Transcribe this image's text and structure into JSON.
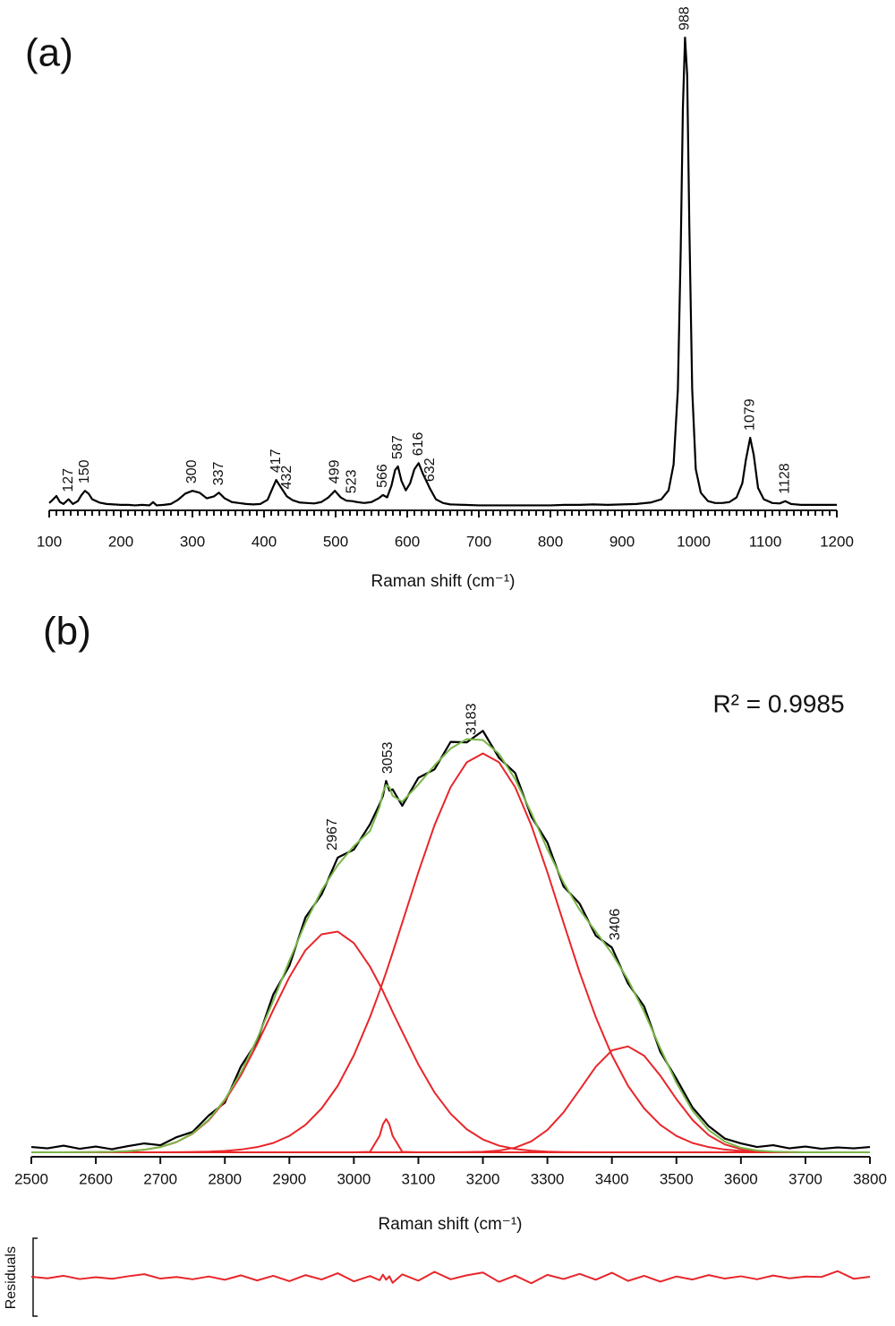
{
  "chart_data": [
    {
      "type": "line",
      "panel": "(a)",
      "xlabel": "Raman shift (cm⁻¹)",
      "xlim": [
        100,
        1200
      ],
      "xticks": [
        100,
        200,
        300,
        400,
        500,
        600,
        700,
        800,
        900,
        1000,
        1100,
        1200
      ],
      "ylim": [
        0,
        100
      ],
      "x": [
        100,
        105,
        110,
        115,
        120,
        127,
        133,
        140,
        145,
        150,
        155,
        160,
        170,
        180,
        190,
        200,
        210,
        220,
        230,
        240,
        245,
        250,
        260,
        270,
        280,
        290,
        300,
        310,
        320,
        330,
        337,
        345,
        355,
        365,
        375,
        385,
        395,
        405,
        412,
        417,
        422,
        432,
        440,
        450,
        460,
        470,
        480,
        490,
        499,
        507,
        515,
        523,
        530,
        540,
        550,
        560,
        566,
        572,
        578,
        583,
        587,
        592,
        598,
        604,
        610,
        616,
        622,
        632,
        640,
        650,
        660,
        680,
        700,
        720,
        740,
        760,
        780,
        800,
        820,
        840,
        860,
        880,
        900,
        920,
        940,
        955,
        965,
        972,
        978,
        982,
        985,
        988,
        991,
        994,
        998,
        1003,
        1010,
        1020,
        1030,
        1040,
        1050,
        1060,
        1068,
        1073,
        1079,
        1084,
        1090,
        1098,
        1110,
        1120,
        1128,
        1136,
        1150,
        1170,
        1200
      ],
      "series": [
        {
          "color": "#000000",
          "values": [
            0.8,
            1.5,
            2.3,
            1.0,
            0.6,
            1.6,
            0.6,
            1.2,
            2.5,
            3.4,
            2.8,
            1.6,
            0.9,
            0.6,
            0.5,
            0.4,
            0.4,
            0.3,
            0.4,
            0.3,
            1.0,
            0.3,
            0.4,
            0.6,
            1.5,
            2.8,
            3.4,
            3.0,
            1.8,
            2.2,
            3.0,
            1.8,
            1.0,
            0.8,
            0.6,
            0.5,
            0.6,
            1.5,
            4.0,
            5.7,
            4.5,
            2.2,
            1.4,
            0.9,
            0.8,
            0.7,
            1.0,
            2.0,
            3.4,
            2.0,
            1.3,
            1.2,
            1.0,
            0.8,
            1.0,
            1.8,
            2.5,
            2.0,
            4.5,
            7.8,
            8.6,
            5.5,
            3.5,
            5.0,
            8.0,
            9.3,
            7.0,
            3.8,
            1.6,
            0.8,
            0.5,
            0.4,
            0.3,
            0.3,
            0.3,
            0.3,
            0.3,
            0.3,
            0.4,
            0.4,
            0.5,
            0.4,
            0.5,
            0.6,
            0.9,
            1.6,
            3.5,
            9,
            25,
            55,
            85,
            100,
            92,
            60,
            25,
            8,
            3,
            1.2,
            0.8,
            0.8,
            1.0,
            2.0,
            5,
            10,
            14.7,
            11,
            4,
            1.6,
            0.8,
            0.7,
            1.2,
            0.6,
            0.4,
            0.4,
            0.4
          ]
        }
      ],
      "peak_labels": [
        127,
        150,
        300,
        337,
        417,
        432,
        499,
        523,
        566,
        587,
        616,
        632,
        988,
        1079,
        1128
      ]
    },
    {
      "type": "line",
      "panel": "(b)",
      "xlabel": "Raman shift (cm⁻¹)",
      "annotation": "R² = 0.9985",
      "xlim": [
        2500,
        3800
      ],
      "xticks": [
        2500,
        2600,
        2700,
        2800,
        2900,
        3000,
        3100,
        3200,
        3300,
        3400,
        3500,
        3600,
        3700,
        3800
      ],
      "ylim": [
        0,
        100
      ],
      "x": [
        2500,
        2525,
        2550,
        2575,
        2600,
        2625,
        2650,
        2675,
        2700,
        2725,
        2750,
        2775,
        2800,
        2825,
        2850,
        2875,
        2900,
        2925,
        2950,
        2975,
        3000,
        3025,
        3040,
        3045,
        3050,
        3055,
        3060,
        3075,
        3100,
        3125,
        3150,
        3175,
        3200,
        3225,
        3250,
        3275,
        3300,
        3325,
        3350,
        3375,
        3400,
        3425,
        3450,
        3475,
        3500,
        3525,
        3550,
        3575,
        3600,
        3625,
        3650,
        3675,
        3700,
        3725,
        3750,
        3775,
        3800
      ],
      "series": [
        {
          "color": "#000000",
          "values": [
            1.2,
            0.9,
            1.5,
            0.8,
            1.3,
            0.7,
            1.4,
            2.0,
            1.6,
            3.4,
            4.6,
            8.3,
            11.2,
            19.4,
            25.0,
            35.6,
            42.1,
            53.0,
            58.2,
            66.5,
            68.3,
            74.0,
            78.6,
            80.4,
            83.8,
            81.6,
            81.9,
            78.2,
            84.5,
            86.4,
            92.6,
            92.5,
            95.1,
            89.0,
            85.6,
            75.8,
            69.9,
            60.0,
            56.1,
            48.9,
            46.2,
            38.1,
            32.9,
            22.7,
            16.6,
            10.1,
            5.9,
            3.1,
            2.0,
            1.2,
            1.6,
            0.9,
            1.3,
            0.8,
            1.1,
            0.9,
            1.2
          ]
        },
        {
          "color": "#e8262a",
          "values": [
            0,
            0,
            0,
            0.02,
            0.04,
            0.11,
            0.26,
            0.57,
            1.19,
            2.3,
            4.2,
            7.2,
            11.6,
            17.4,
            24.4,
            32.1,
            39.5,
            45.6,
            49.2,
            49.8,
            47.2,
            41.9,
            37.8,
            36.4,
            34.8,
            33.3,
            31.7,
            27.2,
            19.8,
            13.5,
            8.7,
            5.2,
            2.9,
            1.5,
            0.75,
            0.35,
            0.15,
            0.06,
            0.02,
            0.01,
            0,
            0,
            0,
            0,
            0,
            0,
            0,
            0,
            0,
            0,
            0,
            0,
            0,
            0,
            0,
            0,
            0
          ]
        },
        {
          "color": "#e8262a",
          "values": [
            0,
            0,
            0,
            0,
            0,
            0,
            0,
            0,
            0,
            0,
            0,
            0,
            0,
            0,
            0,
            0,
            0,
            0,
            0,
            0,
            0,
            0.1,
            3.75,
            6.3,
            7.5,
            6.3,
            3.75,
            0.1,
            0,
            0,
            0,
            0,
            0,
            0,
            0,
            0,
            0,
            0,
            0,
            0,
            0,
            0,
            0,
            0,
            0,
            0,
            0,
            0,
            0,
            0,
            0,
            0,
            0,
            0,
            0,
            0,
            0
          ]
        },
        {
          "color": "#e8262a",
          "values": [
            0,
            0,
            0,
            0,
            0,
            0,
            0,
            0,
            0,
            0.03,
            0.07,
            0.15,
            0.31,
            0.62,
            1.18,
            2.1,
            3.7,
            6.2,
            9.9,
            15.0,
            21.9,
            30.5,
            36.4,
            38.5,
            40.6,
            42.8,
            45.0,
            51.8,
            63.2,
            73.8,
            82.4,
            88.0,
            90.0,
            88.0,
            82.4,
            73.8,
            63.2,
            51.8,
            40.6,
            30.5,
            21.9,
            15.0,
            9.9,
            6.2,
            3.7,
            2.1,
            1.18,
            0.62,
            0.31,
            0.15,
            0.07,
            0.03,
            0,
            0,
            0,
            0,
            0
          ]
        },
        {
          "color": "#e8262a",
          "values": [
            0,
            0,
            0,
            0,
            0,
            0,
            0,
            0,
            0,
            0,
            0,
            0,
            0,
            0,
            0,
            0,
            0,
            0,
            0,
            0,
            0,
            0,
            0,
            0,
            0,
            0,
            0,
            0,
            0,
            0,
            0.01,
            0.04,
            0.13,
            0.39,
            1.05,
            2.46,
            5.04,
            9.0,
            14.1,
            19.3,
            23.0,
            23.9,
            21.8,
            17.3,
            12.0,
            7.3,
            3.85,
            1.78,
            0.72,
            0.25,
            0.08,
            0.02,
            0,
            0,
            0,
            0,
            0
          ]
        },
        {
          "color": "#7ab648",
          "values": [
            0,
            0,
            0,
            0.02,
            0.04,
            0.11,
            0.26,
            0.57,
            1.19,
            2.33,
            4.27,
            7.35,
            11.91,
            18.02,
            25.58,
            34.2,
            43.2,
            51.8,
            59.1,
            64.8,
            69.1,
            72.5,
            77.95,
            81.2,
            82.9,
            82.4,
            80.45,
            79.1,
            83.0,
            87.3,
            91.11,
            93.24,
            93.03,
            89.89,
            84.2,
            76.61,
            68.39,
            60.86,
            54.72,
            49.81,
            44.9,
            38.9,
            31.7,
            23.5,
            15.7,
            9.4,
            5.03,
            2.4,
            1.03,
            0.4,
            0.15,
            0.05,
            0,
            0,
            0,
            0,
            0
          ]
        }
      ],
      "peak_labels": [
        2967,
        3053,
        3183,
        3406
      ]
    },
    {
      "type": "line",
      "ylabel": "Residuals",
      "xlim": [
        2500,
        3800
      ],
      "ylim": [
        -15,
        15
      ],
      "x": [
        2500,
        2525,
        2550,
        2575,
        2600,
        2625,
        2650,
        2675,
        2700,
        2725,
        2750,
        2775,
        2800,
        2825,
        2850,
        2875,
        2900,
        2925,
        2950,
        2975,
        3000,
        3025,
        3040,
        3045,
        3050,
        3055,
        3060,
        3075,
        3100,
        3125,
        3150,
        3175,
        3200,
        3225,
        3250,
        3275,
        3300,
        3325,
        3350,
        3375,
        3400,
        3425,
        3450,
        3475,
        3500,
        3525,
        3550,
        3575,
        3600,
        3625,
        3650,
        3675,
        3700,
        3725,
        3750,
        3775,
        3800
      ],
      "series": [
        {
          "color": "#e8262a",
          "values": [
            0.4,
            -0.3,
            0.8,
            -0.6,
            0.2,
            -0.5,
            0.6,
            1.5,
            -0.4,
            0.3,
            -0.7,
            0.5,
            -0.9,
            1.0,
            -1.2,
            0.8,
            -1.5,
            1.1,
            -0.8,
            1.9,
            -1.6,
            0.7,
            -1.1,
            1.3,
            -0.9,
            0.6,
            -2.2,
            1.4,
            -1.3,
            2.5,
            -0.7,
            1.0,
            2.2,
            -1.8,
            0.9,
            -2.4,
            1.2,
            -0.6,
            1.6,
            -0.9,
            2.1,
            -1.4,
            0.8,
            -1.7,
            0.5,
            -0.8,
            1.1,
            -0.4,
            0.6,
            -0.7,
            0.9,
            -0.3,
            0.5,
            0.3,
            2.8,
            -0.5,
            0.4
          ]
        }
      ]
    }
  ]
}
